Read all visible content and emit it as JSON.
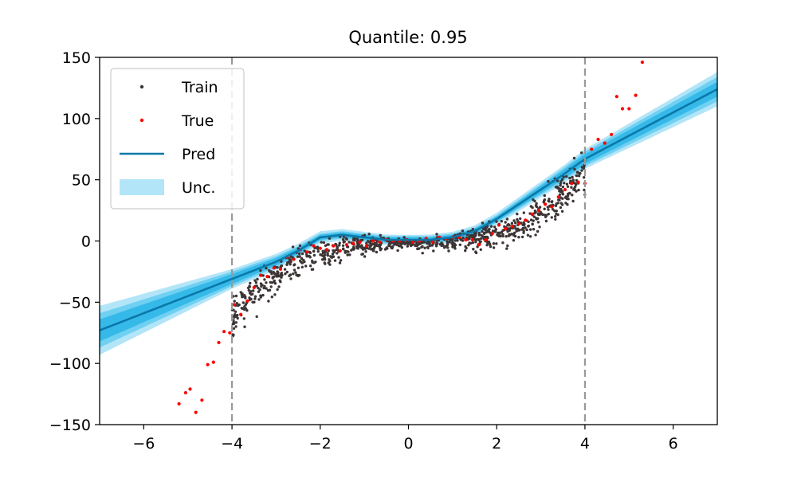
{
  "chart_data": {
    "type": "scatter",
    "title": "Quantile: 0.95",
    "xlabel": "",
    "ylabel": "",
    "xlim": [
      -7,
      7
    ],
    "ylim": [
      -150,
      150
    ],
    "xticks": [
      -6,
      -4,
      -2,
      0,
      2,
      4,
      6
    ],
    "yticks": [
      -150,
      -100,
      -50,
      0,
      50,
      100,
      150
    ],
    "xtick_labels": [
      "−6",
      "−4",
      "−2",
      "0",
      "2",
      "4",
      "6"
    ],
    "ytick_labels": [
      "−150",
      "−100",
      "−50",
      "0",
      "50",
      "100",
      "150"
    ],
    "grid": false,
    "legend_position": "top-left",
    "vlines": [
      -4,
      4
    ],
    "legend": [
      {
        "label": "Train",
        "kind": "dot",
        "color": "#3d3535"
      },
      {
        "label": "True",
        "kind": "dot",
        "color": "#ff0000"
      },
      {
        "label": "Pred",
        "kind": "line",
        "color": "#0a78a8"
      },
      {
        "label": "Unc.",
        "kind": "band",
        "color": "#b3e5f8"
      }
    ],
    "colors": {
      "train": "#3d3535",
      "true": "#ff0000",
      "pred": "#0a78a8",
      "band_outer": "#b3e5f8",
      "band_mid": "#6fd0f2",
      "band_inner": "#35b9e8",
      "vline": "#999999"
    },
    "pred": {
      "x": [
        -7,
        -6,
        -5,
        -4,
        -3,
        -2.5,
        -2,
        -1.5,
        -1,
        -0.5,
        0,
        0.5,
        1,
        1.5,
        2,
        2.5,
        3,
        3.5,
        4,
        5,
        6,
        7
      ],
      "y": [
        -73,
        -59,
        -45,
        -31,
        -17,
        -8,
        3,
        5,
        3,
        1,
        1,
        1,
        3,
        8,
        18,
        30,
        42,
        54,
        67,
        86,
        105,
        124
      ]
    },
    "uncertainty": {
      "x": [
        -7,
        -4,
        -2,
        0,
        2,
        4,
        7
      ],
      "half_width_inner": [
        9,
        4,
        2,
        2,
        2,
        4,
        6
      ],
      "half_width_mid": [
        14,
        6,
        3,
        3,
        3,
        6,
        10
      ],
      "half_width_outer": [
        20,
        8,
        5,
        4,
        5,
        8,
        14
      ]
    },
    "true_points": {
      "x": [
        -5.2,
        -5.05,
        -4.95,
        -4.82,
        -4.68,
        -4.55,
        -4.42,
        -4.3,
        -4.18,
        -4.05,
        -3.95,
        -3.8,
        -3.65,
        -3.5,
        -3.35,
        -3.2,
        -3.05,
        -2.9,
        -2.75,
        -2.6,
        -2.45,
        -2.3,
        -2.15,
        -2.0,
        -1.85,
        -1.7,
        -1.55,
        -1.4,
        -1.25,
        -1.1,
        -0.95,
        -0.8,
        -0.65,
        -0.5,
        -0.35,
        -0.2,
        -0.05,
        0.1,
        0.25,
        0.4,
        0.55,
        0.7,
        0.85,
        1.0,
        1.15,
        1.3,
        1.45,
        1.6,
        1.75,
        1.9,
        2.05,
        2.2,
        2.35,
        2.5,
        2.65,
        2.8,
        2.95,
        3.1,
        3.25,
        3.4,
        3.55,
        3.7,
        3.85,
        4.0,
        4.15,
        4.3,
        4.45,
        4.6,
        4.72,
        4.85,
        5.0,
        5.15,
        5.3
      ],
      "y": [
        -133,
        -124,
        -121,
        -140,
        -130,
        -101,
        -99,
        -83,
        -74,
        -75,
        -52,
        -60,
        -49,
        -38,
        -28,
        -29,
        -22,
        -23,
        -13,
        -15,
        -7,
        -9,
        -4,
        -6,
        -7,
        -4,
        -8,
        -3,
        -2,
        -1,
        -4,
        0,
        -1,
        1,
        0,
        0,
        1,
        -1,
        0,
        2,
        -1,
        3,
        2,
        3,
        3,
        1,
        1,
        -3,
        1,
        6,
        13,
        10,
        12,
        14,
        17,
        22,
        25,
        30,
        28,
        36,
        42,
        47,
        48,
        47,
        75,
        83,
        80,
        87,
        118,
        108,
        108,
        119,
        146
      ]
    },
    "train_points": {
      "x_range": [
        -4,
        4
      ],
      "n": 900,
      "noise": "heteroscedastic, increasing with |x|"
    }
  }
}
